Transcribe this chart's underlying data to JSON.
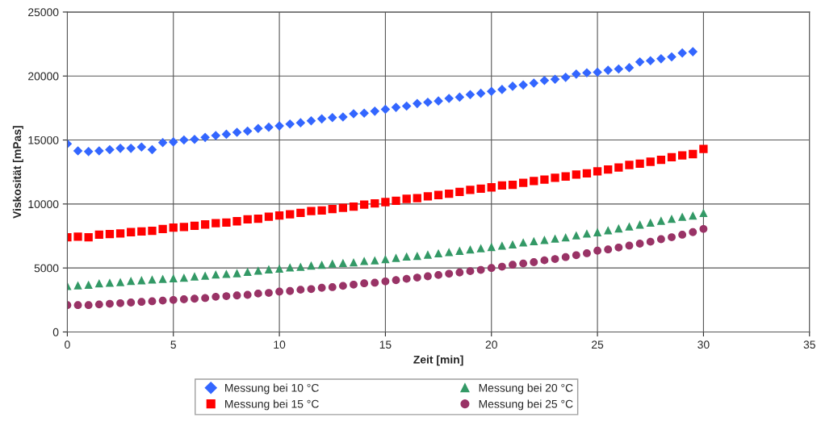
{
  "chart_data": {
    "type": "scatter",
    "xlabel": "Zeit [min]",
    "ylabel": "Viskosität [mPas]",
    "x": [
      0,
      0.5,
      1,
      1.5,
      2,
      2.5,
      3,
      3.5,
      4,
      4.5,
      5,
      5.5,
      6,
      6.5,
      7,
      7.5,
      8,
      8.5,
      9,
      9.5,
      10,
      10.5,
      11,
      11.5,
      12,
      12.5,
      13,
      13.5,
      14,
      14.5,
      15,
      15.5,
      16,
      16.5,
      17,
      17.5,
      18,
      18.5,
      19,
      19.5,
      20,
      20.5,
      21,
      21.5,
      22,
      22.5,
      23,
      23.5,
      24,
      24.5,
      25,
      25.5,
      26,
      26.5,
      27,
      27.5,
      28,
      28.5,
      29,
      29.5,
      30
    ],
    "xlim": [
      0,
      35
    ],
    "xticks": [
      0,
      5,
      10,
      15,
      20,
      25,
      30,
      35
    ],
    "ylim": [
      0,
      25000
    ],
    "yticks": [
      0,
      5000,
      10000,
      15000,
      20000,
      25000
    ],
    "grid": true,
    "legend": "bottom",
    "series": [
      {
        "name": "Messung bei 10 °C",
        "color": "#3366ff",
        "marker": "diamond",
        "values": [
          14700,
          14150,
          14100,
          14150,
          14250,
          14350,
          14350,
          14450,
          14250,
          14800,
          14850,
          15000,
          15050,
          15200,
          15350,
          15450,
          15600,
          15700,
          15900,
          16000,
          16100,
          16250,
          16350,
          16500,
          16650,
          16750,
          16800,
          17050,
          17100,
          17250,
          17400,
          17550,
          17650,
          17850,
          17950,
          18050,
          18250,
          18350,
          18550,
          18650,
          18800,
          18950,
          19200,
          19300,
          19450,
          19650,
          19750,
          19900,
          20150,
          20250,
          20300,
          20450,
          20550,
          20650,
          21100,
          21200,
          21350,
          21500,
          21800,
          21900,
          null
        ]
      },
      {
        "name": "Messung bei 15 °C",
        "color": "#ff0000",
        "marker": "square",
        "values": [
          7400,
          7450,
          7400,
          7600,
          7650,
          7700,
          7800,
          7850,
          7900,
          8050,
          8150,
          8200,
          8300,
          8400,
          8500,
          8550,
          8650,
          8800,
          8850,
          9000,
          9100,
          9200,
          9300,
          9450,
          9500,
          9600,
          9700,
          9800,
          9950,
          10050,
          10150,
          10250,
          10400,
          10450,
          10600,
          10700,
          10800,
          10950,
          11100,
          11200,
          11300,
          11450,
          11500,
          11650,
          11800,
          11900,
          12050,
          12150,
          12300,
          12400,
          12550,
          12700,
          12850,
          13050,
          13150,
          13300,
          13450,
          13650,
          13800,
          13900,
          14300
        ]
      },
      {
        "name": "Messung bei 20 °C",
        "color": "#339966",
        "marker": "triangle",
        "values": [
          3600,
          3650,
          3700,
          3800,
          3850,
          3900,
          4000,
          4050,
          4100,
          4150,
          4200,
          4250,
          4350,
          4400,
          4500,
          4550,
          4600,
          4700,
          4800,
          4900,
          4950,
          5050,
          5100,
          5200,
          5250,
          5350,
          5400,
          5450,
          5550,
          5600,
          5700,
          5800,
          5900,
          5950,
          6050,
          6150,
          6250,
          6350,
          6450,
          6550,
          6650,
          6750,
          6850,
          7000,
          7100,
          7200,
          7300,
          7400,
          7550,
          7700,
          7800,
          7950,
          8100,
          8250,
          8400,
          8550,
          8700,
          8850,
          9000,
          9100,
          9300
        ]
      },
      {
        "name": "Messung bei 25 °C",
        "color": "#993366",
        "marker": "circle",
        "values": [
          2100,
          2100,
          2100,
          2150,
          2200,
          2250,
          2300,
          2350,
          2400,
          2450,
          2500,
          2550,
          2600,
          2650,
          2750,
          2800,
          2850,
          2900,
          3000,
          3050,
          3150,
          3200,
          3300,
          3350,
          3450,
          3500,
          3600,
          3700,
          3800,
          3850,
          3950,
          4050,
          4150,
          4250,
          4350,
          4450,
          4550,
          4650,
          4750,
          4850,
          5000,
          5100,
          5250,
          5350,
          5450,
          5600,
          5700,
          5850,
          6000,
          6150,
          6350,
          6450,
          6600,
          6750,
          6900,
          7050,
          7250,
          7400,
          7600,
          7800,
          8050
        ]
      }
    ]
  }
}
